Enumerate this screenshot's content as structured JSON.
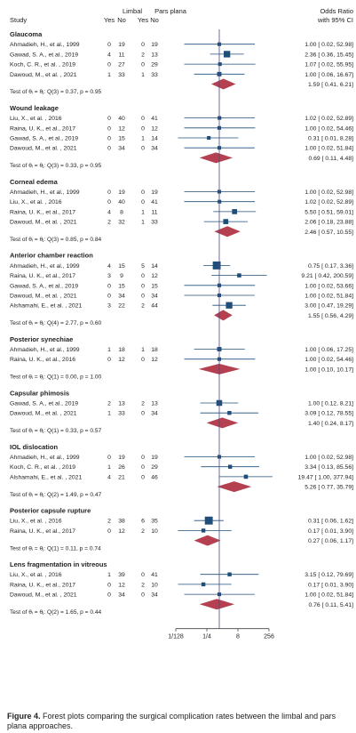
{
  "header": {
    "study": "Study",
    "limbal": "Limbal",
    "pars_plana": "Pars plana",
    "yes": "Yes",
    "no": "No",
    "or_line1": "Odds Ratio",
    "or_line2": "with 95% CI"
  },
  "chart_data": {
    "type": "forest",
    "x_scale": "log2",
    "xlim": [
      0.0078125,
      256
    ],
    "reference_line": 1,
    "x_ticks": [
      {
        "value": 0.0078125,
        "label": "1/128"
      },
      {
        "value": 0.25,
        "label": "1/4"
      },
      {
        "value": 8,
        "label": "8"
      },
      {
        "value": 256,
        "label": "256"
      }
    ],
    "groups": [
      {
        "name": "Glaucoma",
        "studies": [
          {
            "study": "Ahmadieh, H., et al., 1999",
            "ly": "0",
            "ln": "19",
            "py": "0",
            "pn": "19",
            "or": 1.0,
            "lo": 0.02,
            "hi": 52.98,
            "or_text": "1.00 [ 0.02, 52.98]",
            "weight": 1
          },
          {
            "study": "Gawad, S. A., et al., 2019",
            "ly": "4",
            "ln": "11",
            "py": "2",
            "pn": "13",
            "or": 2.36,
            "lo": 0.36,
            "hi": 15.45,
            "or_text": "2.36 [ 0.36, 15.45]",
            "weight": 3
          },
          {
            "study": "Koch, C. R., et al. , 2019",
            "ly": "0",
            "ln": "27",
            "py": "0",
            "pn": "29",
            "or": 1.07,
            "lo": 0.02,
            "hi": 55.95,
            "or_text": "1.07 [ 0.02, 55.95]",
            "weight": 1
          },
          {
            "study": "Dawoud, M., et al. , 2021",
            "ly": "1",
            "ln": "33",
            "py": "1",
            "pn": "33",
            "or": 1.0,
            "lo": 0.06,
            "hi": 16.67,
            "or_text": "1.00 [ 0.06, 16.67]",
            "weight": 1.5
          }
        ],
        "summary": {
          "or": 1.59,
          "lo": 0.41,
          "hi": 6.21,
          "or_text": "1.59 [ 0.41, 6.21]"
        },
        "test": "Test of θᵢ = θⱼ: Q(3) = 0.37, p = 0.95"
      },
      {
        "name": "Wound leakage",
        "studies": [
          {
            "study": "Liu, X., et al. , 2016",
            "ly": "0",
            "ln": "40",
            "py": "0",
            "pn": "41",
            "or": 1.02,
            "lo": 0.02,
            "hi": 52.89,
            "or_text": "1.02 [ 0.02, 52.89]",
            "weight": 1
          },
          {
            "study": "Raina, U. K., et al., 2017",
            "ly": "0",
            "ln": "12",
            "py": "0",
            "pn": "12",
            "or": 1.0,
            "lo": 0.02,
            "hi": 54.46,
            "or_text": "1.00 [ 0.02, 54.46]",
            "weight": 1
          },
          {
            "study": "Gawad, S. A., et al., 2019",
            "ly": "0",
            "ln": "15",
            "py": "1",
            "pn": "14",
            "or": 0.31,
            "lo": 0.01,
            "hi": 8.28,
            "or_text": "0.31 [ 0.01, 8.28]",
            "weight": 1
          },
          {
            "study": "Dawoud, M., et al. , 2021",
            "ly": "0",
            "ln": "34",
            "py": "0",
            "pn": "34",
            "or": 1.0,
            "lo": 0.02,
            "hi": 51.84,
            "or_text": "1.00 [ 0.02, 51.84]",
            "weight": 1
          }
        ],
        "summary": {
          "or": 0.69,
          "lo": 0.11,
          "hi": 4.48,
          "or_text": "0.69 [ 0.11, 4.48]"
        },
        "test": "Test of θᵢ = θⱼ: Q(3) = 0.33, p = 0.95"
      },
      {
        "name": "Corneal edema",
        "studies": [
          {
            "study": "Ahmadieh, H., et al., 1999",
            "ly": "0",
            "ln": "19",
            "py": "0",
            "pn": "19",
            "or": 1.0,
            "lo": 0.02,
            "hi": 52.98,
            "or_text": "1.00 [ 0.02, 52.98]",
            "weight": 1
          },
          {
            "study": "Liu, X., et al. , 2016",
            "ly": "0",
            "ln": "40",
            "py": "0",
            "pn": "41",
            "or": 1.02,
            "lo": 0.02,
            "hi": 52.89,
            "or_text": "1.02 [ 0.02, 52.89]",
            "weight": 1
          },
          {
            "study": "Raina, U. K., et al., 2017",
            "ly": "4",
            "ln": "8",
            "py": "1",
            "pn": "11",
            "or": 5.5,
            "lo": 0.51,
            "hi": 59.01,
            "or_text": "5.50 [ 0.51, 59.01]",
            "weight": 2
          },
          {
            "study": "Dawoud, M., et al. , 2021",
            "ly": "2",
            "ln": "32",
            "py": "1",
            "pn": "33",
            "or": 2.06,
            "lo": 0.18,
            "hi": 23.88,
            "or_text": "2.06 [ 0.18, 23.88]",
            "weight": 2
          }
        ],
        "summary": {
          "or": 2.46,
          "lo": 0.57,
          "hi": 10.55,
          "or_text": "2.46 [ 0.57, 10.55]"
        },
        "test": "Test of θᵢ = θⱼ: Q(3) = 0.85, p = 0.84"
      },
      {
        "name": "Anterior chamber reaction",
        "studies": [
          {
            "study": "Ahmadieh, H., et al., 1999",
            "ly": "4",
            "ln": "15",
            "py": "5",
            "pn": "14",
            "or": 0.75,
            "lo": 0.17,
            "hi": 3.36,
            "or_text": "0.75 [ 0.17, 3.36]",
            "weight": 4
          },
          {
            "study": "Raina, U. K., et al., 2017",
            "ly": "3",
            "ln": "9",
            "py": "0",
            "pn": "12",
            "or": 9.21,
            "lo": 0.42,
            "hi": 200.59,
            "or_text": "9.21 [ 0.42, 200.59]",
            "weight": 1.3
          },
          {
            "study": "Gawad, S. A., et al., 2019",
            "ly": "0",
            "ln": "15",
            "py": "0",
            "pn": "15",
            "or": 1.0,
            "lo": 0.02,
            "hi": 53.66,
            "or_text": "1.00 [ 0.02, 53.66]",
            "weight": 1
          },
          {
            "study": "Dawoud, M., et al. , 2021",
            "ly": "0",
            "ln": "34",
            "py": "0",
            "pn": "34",
            "or": 1.0,
            "lo": 0.02,
            "hi": 51.84,
            "or_text": "1.00 [ 0.02, 51.84]",
            "weight": 1
          },
          {
            "study": "Alshamahi, E., et al. , 2021",
            "ly": "3",
            "ln": "22",
            "py": "2",
            "pn": "44",
            "or": 3.0,
            "lo": 0.47,
            "hi": 19.29,
            "or_text": "3.00 [ 0.47, 19.29]",
            "weight": 3
          }
        ],
        "summary": {
          "or": 1.55,
          "lo": 0.56,
          "hi": 4.29,
          "or_text": "1.55 [ 0.56, 4.29]"
        },
        "test": "Test of θᵢ = θⱼ: Q(4) = 2.77, p = 0.60"
      },
      {
        "name": "Posterior synechiae",
        "studies": [
          {
            "study": "Ahmadieh, H., et al., 1999",
            "ly": "1",
            "ln": "18",
            "py": "1",
            "pn": "18",
            "or": 1.0,
            "lo": 0.06,
            "hi": 17.25,
            "or_text": "1.00 [ 0.06, 17.25]",
            "weight": 1.5
          },
          {
            "study": "Raina, U. K., et al., 2016",
            "ly": "0",
            "ln": "12",
            "py": "0",
            "pn": "12",
            "or": 1.0,
            "lo": 0.02,
            "hi": 54.46,
            "or_text": "1.00 [ 0.02, 54.46]",
            "weight": 1
          }
        ],
        "summary": {
          "or": 1.0,
          "lo": 0.1,
          "hi": 10.17,
          "or_text": "1.00 [ 0.10, 10.17]"
        },
        "test": "Test of θᵢ = θⱼ: Q(1) = 0.00, p = 1.00"
      },
      {
        "name": "Capsular phimosis",
        "studies": [
          {
            "study": "Gawad, S. A., et al., 2019",
            "ly": "2",
            "ln": "13",
            "py": "2",
            "pn": "13",
            "or": 1.0,
            "lo": 0.12,
            "hi": 8.21,
            "or_text": "1.00 [ 0.12, 8.21]",
            "weight": 2.5
          },
          {
            "study": "Dawoud, M., et al. , 2021",
            "ly": "1",
            "ln": "33",
            "py": "0",
            "pn": "34",
            "or": 3.09,
            "lo": 0.12,
            "hi": 78.55,
            "or_text": "3.09 [ 0.12, 78.55]",
            "weight": 1.2
          }
        ],
        "summary": {
          "or": 1.4,
          "lo": 0.24,
          "hi": 8.17,
          "or_text": "1.40 [ 0.24, 8.17]"
        },
        "test": "Test of θᵢ = θⱼ: Q(1) = 0.33, p = 0.57"
      },
      {
        "name": "IOL dislocation",
        "studies": [
          {
            "study": "Ahmadieh, H., et al., 1999",
            "ly": "0",
            "ln": "19",
            "py": "0",
            "pn": "19",
            "or": 1.0,
            "lo": 0.02,
            "hi": 52.98,
            "or_text": "1.00 [ 0.02, 52.98]",
            "weight": 1
          },
          {
            "study": "Koch, C. R., et al. , 2019",
            "ly": "1",
            "ln": "26",
            "py": "0",
            "pn": "29",
            "or": 3.34,
            "lo": 0.13,
            "hi": 85.56,
            "or_text": "3.34 [ 0.13, 85.56]",
            "weight": 1.2
          },
          {
            "study": "Alshamahi, E., et al. , 2021",
            "ly": "4",
            "ln": "21",
            "py": "0",
            "pn": "46",
            "or": 19.47,
            "lo": 1.0,
            "hi": 377.94,
            "or_text": "19.47 [ 1.00, 377.94]",
            "weight": 1.3
          }
        ],
        "summary": {
          "or": 5.26,
          "lo": 0.77,
          "hi": 35.79,
          "or_text": "5.26 [ 0.77, 35.79]"
        },
        "test": "Test of θᵢ = θⱼ: Q(2) = 1.49, p = 0.47"
      },
      {
        "name": "Posterior capsule rupture",
        "studies": [
          {
            "study": "Liu, X., et al. , 2016",
            "ly": "2",
            "ln": "38",
            "py": "6",
            "pn": "35",
            "or": 0.31,
            "lo": 0.06,
            "hi": 1.62,
            "or_text": "0.31 [ 0.06, 1.62]",
            "weight": 4
          },
          {
            "study": "Raina, U. K., et al., 2017",
            "ly": "0",
            "ln": "12",
            "py": "2",
            "pn": "10",
            "or": 0.17,
            "lo": 0.01,
            "hi": 3.9,
            "or_text": "0.17 [ 0.01, 3.90]",
            "weight": 1.2
          }
        ],
        "summary": {
          "or": 0.27,
          "lo": 0.06,
          "hi": 1.17,
          "or_text": "0.27 [ 0.06, 1.17]"
        },
        "test": "Test of θᵢ = θⱼ: Q(1) = 0.11, p = 0.74"
      },
      {
        "name": "Lens fragmentation in vitreous",
        "studies": [
          {
            "study": "Liu, X., et al. , 2016",
            "ly": "1",
            "ln": "39",
            "py": "0",
            "pn": "41",
            "or": 3.15,
            "lo": 0.12,
            "hi": 79.69,
            "or_text": "3.15 [ 0.12, 79.69]",
            "weight": 1.2
          },
          {
            "study": "Raina, U. K., et al., 2017",
            "ly": "0",
            "ln": "12",
            "py": "2",
            "pn": "10",
            "or": 0.17,
            "lo": 0.01,
            "hi": 3.9,
            "or_text": "0.17 [ 0.01, 3.90]",
            "weight": 1.2
          },
          {
            "study": "Dawoud, M., et al. , 2021",
            "ly": "0",
            "ln": "34",
            "py": "0",
            "pn": "34",
            "or": 1.0,
            "lo": 0.02,
            "hi": 51.84,
            "or_text": "1.00 [ 0.02, 51.84]",
            "weight": 1
          }
        ],
        "summary": {
          "or": 0.76,
          "lo": 0.11,
          "hi": 5.41,
          "or_text": "0.76 [ 0.11, 5.41]"
        },
        "test": "Test of θᵢ = θⱼ: Q(2) = 1.65, p = 0.44"
      }
    ]
  },
  "caption": {
    "label": "Figure 4.",
    "text": " Forest plots comparing the surgical complication rates between the limbal and pars plana approaches."
  },
  "colors": {
    "marker": "#1f4e79",
    "diamond": "#b5404f",
    "reference": "#4a4a8a",
    "text": "#222222"
  }
}
